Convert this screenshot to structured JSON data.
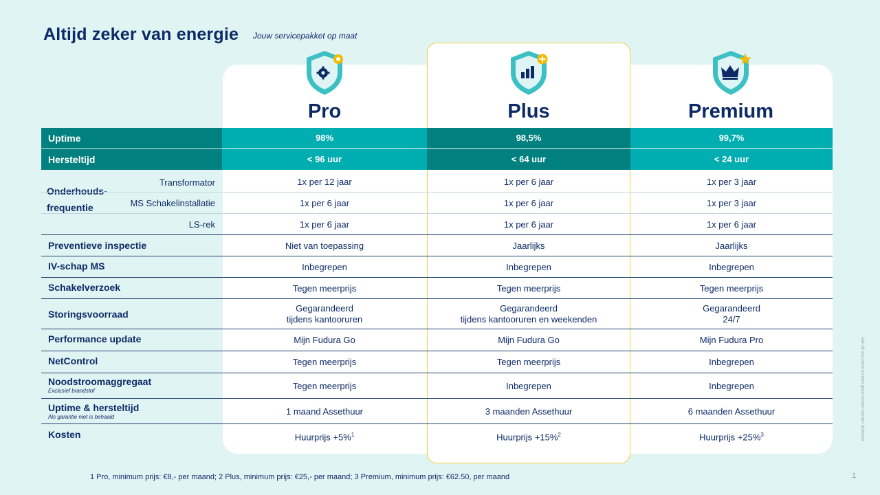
{
  "header": {
    "title": "Altijd zeker van energie",
    "subtitle": "Jouw servicepakket op maat"
  },
  "plans": [
    {
      "name": "Pro",
      "badge_icon": "gear-icon"
    },
    {
      "name": "Plus",
      "badge_icon": "bar-chart-icon"
    },
    {
      "name": "Premium",
      "badge_icon": "crown-icon"
    }
  ],
  "rows": {
    "uptime": {
      "label": "Uptime",
      "values": [
        "98%",
        "98,5%",
        "99,7%"
      ]
    },
    "hersteltijd": {
      "label": "Hersteltijd",
      "values": [
        "< 96 uur",
        "< 64 uur",
        "< 24 uur"
      ]
    },
    "onderhoud": {
      "label_line1": "Onderhouds-",
      "label_line2": "frequentie",
      "transformator": {
        "label": "Transformator",
        "values": [
          "1x per 12 jaar",
          "1x per 6 jaar",
          "1x per 3 jaar"
        ]
      },
      "ms": {
        "label": "MS Schakelinstallatie",
        "values": [
          "1x per 6 jaar",
          "1x per 6 jaar",
          "1x per 3 jaar"
        ]
      },
      "ls": {
        "label": "LS-rek",
        "values": [
          "1x per 6 jaar",
          "1x per 6 jaar",
          "1x per 6 jaar"
        ]
      }
    },
    "preventieve": {
      "label": "Preventieve inspectie",
      "values": [
        "Niet van toepassing",
        "Jaarlijks",
        "Jaarlijks"
      ]
    },
    "ivschap": {
      "label": "IV-schap MS",
      "values": [
        "Inbegrepen",
        "Inbegrepen",
        "Inbegrepen"
      ]
    },
    "schakel": {
      "label": "Schakelverzoek",
      "values": [
        "Tegen meerprijs",
        "Tegen meerprijs",
        "Tegen meerprijs"
      ]
    },
    "storing": {
      "label": "Storingsvoorraad",
      "line1": [
        "Gegarandeerd",
        "Gegarandeerd",
        "Gegarandeerd"
      ],
      "line2": [
        "tijdens kantooruren",
        "tijdens kantooruren en weekenden",
        "24/7"
      ]
    },
    "performance": {
      "label": "Performance update",
      "values": [
        "Mijn Fudura Go",
        "Mijn Fudura Go",
        "Mijn Fudura Pro"
      ]
    },
    "netcontrol": {
      "label": "NetControl",
      "values": [
        "Tegen meerprijs",
        "Tegen meerprijs",
        "Inbegrepen"
      ]
    },
    "nood": {
      "label": "Noodstroomaggregaat",
      "note": "Exclusief brandstof",
      "values": [
        "Tegen meerprijs",
        "Inbegrepen",
        "Inbegrepen"
      ]
    },
    "uptimeherstel": {
      "label": "Uptime & hersteltijd",
      "note": "Als garantie niet is behaald",
      "values": [
        "1 maand Assethuur",
        "3 maanden Assethuur",
        "6 maanden Assethuur"
      ]
    },
    "kosten": {
      "label": "Kosten",
      "values": [
        "Huurprijs +5%",
        "Huurprijs +15%",
        "Huurprijs +25%"
      ],
      "sups": [
        "1",
        "2",
        "3"
      ]
    }
  },
  "footnote": "1 Pro, minimum prijs: €8,- per maand; 2 Plus, minimum prijs: €25,- per maand; 3 Premium, minimum prijs: €62.50, per maand",
  "page_number": "1",
  "side_note": "Aan dit document kunnen geen rechten worden ontleend",
  "colors": {
    "band_teal": "#00adb0",
    "band_dark_teal": "#00807f",
    "navy": "#0d2a66",
    "gold": "#f0cf3a",
    "background": "#e1f4f4"
  }
}
